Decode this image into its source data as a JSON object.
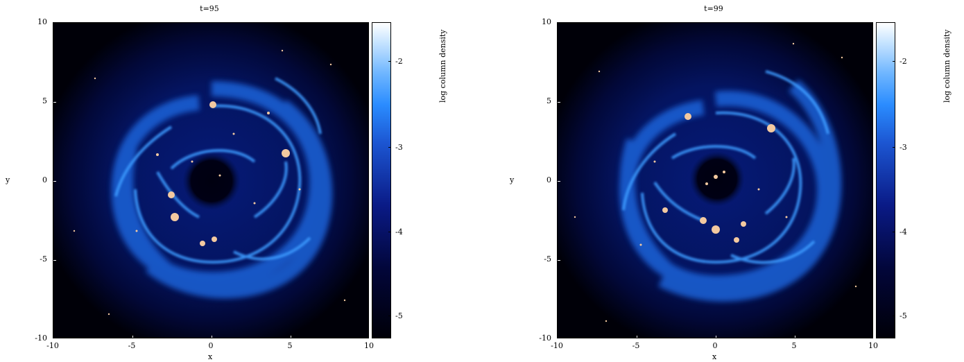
{
  "panels": [
    {
      "title": "t=95",
      "xlabel": "x",
      "ylabel": "y",
      "colorbar_label": "log column density",
      "x_ticks": [
        "-10",
        "-5",
        "0",
        "5",
        "10"
      ],
      "y_ticks": [
        "10",
        "5",
        "0",
        "-5",
        "-10"
      ],
      "cbar_ticks": [
        "-2",
        "-3",
        "-4",
        "-5"
      ]
    },
    {
      "title": "t=99",
      "xlabel": "x",
      "ylabel": "y",
      "colorbar_label": "log column density",
      "x_ticks": [
        "-10",
        "-5",
        "0",
        "5",
        "10"
      ],
      "y_ticks": [
        "10",
        "5",
        "0",
        "-5",
        "-10"
      ],
      "cbar_ticks": [
        "-2",
        "-3",
        "-4",
        "-5"
      ]
    }
  ],
  "colors": {
    "gas_low": "#000010",
    "gas_mid": "#0a3aa8",
    "gas_high": "#3a9bff",
    "stars": "#f3c9a0"
  }
}
